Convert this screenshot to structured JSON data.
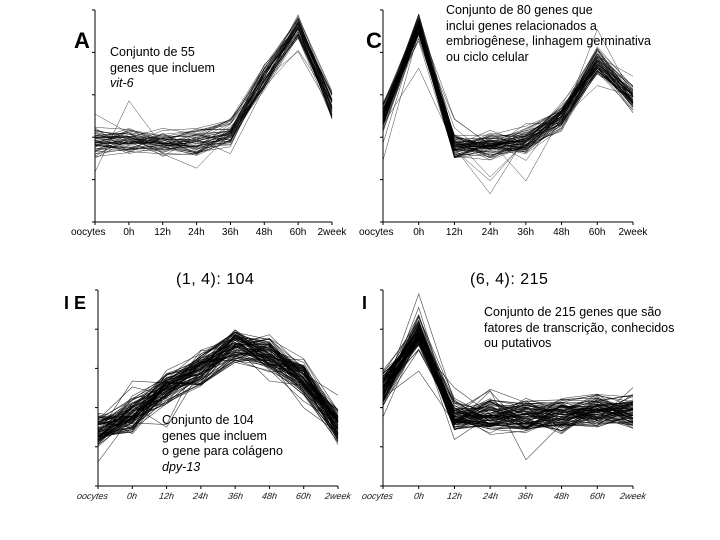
{
  "panels": [
    {
      "id": "A",
      "letter": "A",
      "title": "",
      "caption": [
        "Conjunto de 55",
        "genes que incluem"
      ],
      "caption_italic": "vit-6",
      "x_ticks": [
        "oocytes",
        "0h",
        "12h",
        "24h",
        "36h",
        "48h",
        "60h",
        "2week"
      ]
    },
    {
      "id": "C",
      "letter": "C",
      "title": "",
      "caption": [
        "Conjunto de 80 genes que",
        "inclui genes relacionados a",
        "embriogênese, linhagem germinativa",
        "ou ciclo celular"
      ],
      "caption_italic": "",
      "x_ticks": [
        "oocytes",
        "0h",
        "12h",
        "24h",
        "36h",
        "48h",
        "60h",
        "2week"
      ]
    },
    {
      "id": "B",
      "letter": "I E",
      "title": "(1, 4): 104",
      "caption": [
        "Conjunto de 104",
        "genes que incluem",
        "o gene para colágeno"
      ],
      "caption_italic": "dpy-13",
      "x_ticks": [
        "oocytes",
        "0h",
        "12h",
        "24h",
        "36h",
        "48h",
        "60h",
        "2week"
      ]
    },
    {
      "id": "D",
      "letter": "I",
      "title": "(6, 4): 215",
      "caption": [
        "Conjunto de 215 genes que são",
        "fatores de transcrição, conhecidos",
        "ou putativos"
      ],
      "caption_italic": "",
      "x_ticks": [
        "oocytes",
        "0h",
        "12h",
        "24h",
        "36h",
        "48h",
        "60h",
        "2week"
      ]
    }
  ],
  "chart_data": [
    {
      "type": "line",
      "panel": "A",
      "x": [
        "oocytes",
        "0h",
        "12h",
        "24h",
        "36h",
        "48h",
        "60h",
        "2week"
      ],
      "series_count": 55,
      "profile": [
        0.38,
        0.38,
        0.38,
        0.38,
        0.42,
        0.68,
        0.92,
        0.55
      ],
      "ylim": [
        0,
        1
      ],
      "grid": false
    },
    {
      "type": "line",
      "panel": "C",
      "x": [
        "oocytes",
        "0h",
        "12h",
        "24h",
        "36h",
        "48h",
        "60h",
        "2week"
      ],
      "series_count": 80,
      "profile": [
        0.5,
        0.92,
        0.36,
        0.36,
        0.38,
        0.5,
        0.76,
        0.58
      ],
      "ylim": [
        0,
        1
      ],
      "grid": false
    },
    {
      "type": "line",
      "panel": "B",
      "x": [
        "oocytes",
        "0h",
        "12h",
        "24h",
        "36h",
        "48h",
        "60h",
        "2week"
      ],
      "series_count": 104,
      "profile": [
        0.28,
        0.36,
        0.5,
        0.6,
        0.72,
        0.68,
        0.55,
        0.3
      ],
      "ylim": [
        0,
        1
      ],
      "grid": false
    },
    {
      "type": "line",
      "panel": "D",
      "x": [
        "oocytes",
        "0h",
        "12h",
        "24h",
        "36h",
        "48h",
        "60h",
        "2week"
      ],
      "series_count": 215,
      "profile": [
        0.5,
        0.78,
        0.36,
        0.36,
        0.36,
        0.36,
        0.38,
        0.38
      ],
      "ylim": [
        0,
        1
      ],
      "grid": false
    }
  ]
}
